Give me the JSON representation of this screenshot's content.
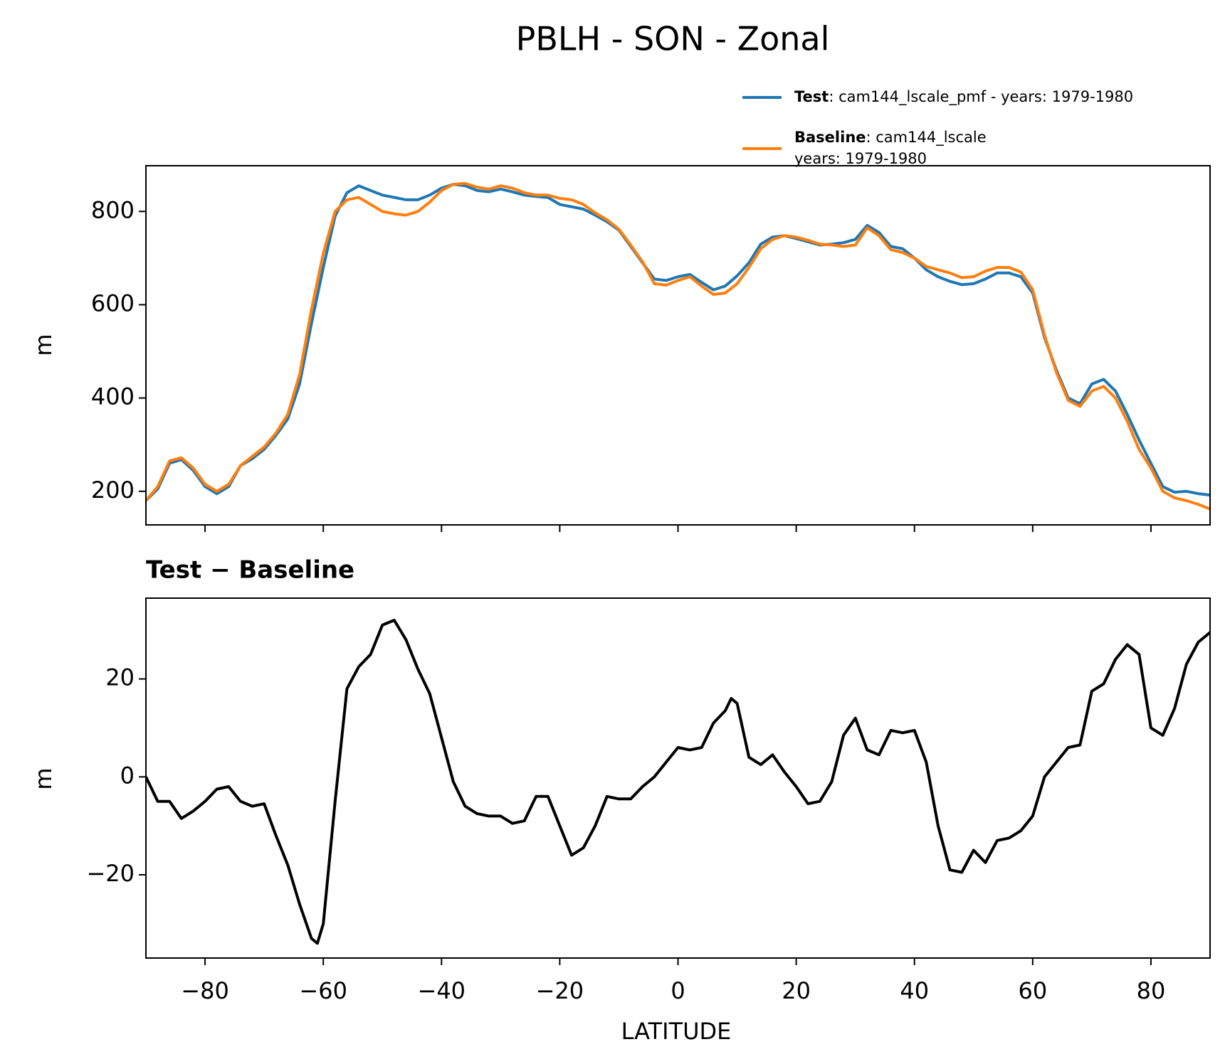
{
  "chart_data": [
    {
      "type": "line",
      "title": "PBLH - SON - Zonal",
      "ylabel": "m",
      "x": [
        -90,
        -88,
        -86,
        -84,
        -82,
        -80,
        -78,
        -76,
        -74,
        -72,
        -70,
        -68,
        -66,
        -64,
        -62,
        -60,
        -58,
        -56,
        -54,
        -52,
        -50,
        -48,
        -46,
        -44,
        -42,
        -40,
        -38,
        -36,
        -34,
        -32,
        -30,
        -28,
        -26,
        -24,
        -22,
        -20,
        -18,
        -16,
        -14,
        -12,
        -10,
        -8,
        -6,
        -4,
        -2,
        0,
        2,
        4,
        6,
        8,
        10,
        12,
        14,
        16,
        18,
        20,
        22,
        24,
        26,
        28,
        30,
        32,
        34,
        36,
        38,
        40,
        42,
        44,
        46,
        48,
        50,
        52,
        54,
        56,
        58,
        60,
        62,
        64,
        66,
        68,
        70,
        72,
        74,
        76,
        78,
        80,
        82,
        84,
        86,
        88,
        90
      ],
      "series": [
        {
          "name": "Test",
          "description": [
            ": cam144_lscale_pmf - years: 1979-1980"
          ],
          "color": "#1f77b4",
          "values": [
            180,
            205,
            260,
            268,
            245,
            210,
            195,
            210,
            255,
            270,
            290,
            320,
            355,
            430,
            560,
            680,
            790,
            840,
            855,
            845,
            835,
            830,
            825,
            825,
            835,
            850,
            858,
            855,
            845,
            842,
            848,
            842,
            835,
            832,
            830,
            815,
            810,
            805,
            792,
            778,
            760,
            725,
            690,
            655,
            652,
            660,
            665,
            648,
            632,
            640,
            662,
            690,
            730,
            745,
            748,
            742,
            735,
            728,
            730,
            733,
            740,
            770,
            755,
            725,
            720,
            700,
            675,
            660,
            650,
            643,
            645,
            655,
            668,
            668,
            660,
            625,
            530,
            460,
            400,
            388,
            430,
            440,
            415,
            365,
            310,
            260,
            210,
            198,
            200,
            195,
            192
          ]
        },
        {
          "name": "Baseline",
          "description": [
            ": cam144_lscale",
            "years: 1979-1980"
          ],
          "color": "#ff7f0e",
          "values": [
            180,
            210,
            265,
            272,
            250,
            215,
            200,
            215,
            255,
            275,
            295,
            325,
            365,
            450,
            590,
            710,
            800,
            825,
            830,
            815,
            800,
            795,
            792,
            800,
            820,
            845,
            858,
            860,
            852,
            848,
            855,
            850,
            840,
            835,
            835,
            828,
            825,
            815,
            797,
            782,
            762,
            728,
            692,
            645,
            642,
            652,
            660,
            640,
            622,
            625,
            645,
            680,
            720,
            740,
            748,
            745,
            738,
            730,
            728,
            725,
            728,
            765,
            748,
            718,
            712,
            700,
            682,
            675,
            668,
            658,
            660,
            672,
            680,
            680,
            670,
            632,
            535,
            455,
            395,
            382,
            415,
            425,
            400,
            350,
            290,
            250,
            200,
            186,
            180,
            172,
            162
          ]
        }
      ],
      "xlim": [
        -90,
        90
      ],
      "xticks": [
        -80,
        -60,
        -40,
        -20,
        0,
        20,
        40,
        60,
        80
      ],
      "ylim": [
        128,
        898
      ],
      "yticks": [
        200,
        400,
        600,
        800
      ]
    },
    {
      "type": "line",
      "title": "Test − Baseline",
      "ylabel": "m",
      "xlabel": "LATITUDE",
      "x": [
        -90,
        -88,
        -86,
        -84,
        -82,
        -80,
        -78,
        -76,
        -74,
        -72,
        -70,
        -68,
        -66,
        -64,
        -62,
        -61,
        -60,
        -58,
        -56,
        -54,
        -52,
        -50,
        -48,
        -46,
        -44,
        -42,
        -40,
        -38,
        -36,
        -34,
        -32,
        -30,
        -28,
        -26,
        -24,
        -22,
        -20,
        -18,
        -16,
        -14,
        -12,
        -10,
        -8,
        -6,
        -4,
        -2,
        0,
        2,
        4,
        6,
        8,
        9,
        10,
        12,
        14,
        16,
        18,
        20,
        22,
        24,
        26,
        28,
        30,
        32,
        34,
        36,
        38,
        40,
        42,
        44,
        46,
        48,
        50,
        52,
        54,
        56,
        58,
        60,
        62,
        64,
        66,
        68,
        70,
        72,
        74,
        76,
        78,
        80,
        82,
        84,
        86,
        88,
        90
      ],
      "series": [
        {
          "name": "Test − Baseline",
          "color": "#000000",
          "values": [
            0,
            -5,
            -5,
            -8.5,
            -7,
            -5,
            -2.5,
            -2,
            -5,
            -6,
            -5.5,
            -12,
            -18,
            -26,
            -33,
            -34,
            -30,
            -5,
            18,
            22.5,
            25,
            31,
            32,
            28,
            22,
            17,
            8,
            -1,
            -6,
            -7.5,
            -8,
            -8,
            -9.5,
            -9,
            -4,
            -4,
            -10,
            -16,
            -14.5,
            -10,
            -4,
            -4.5,
            -4.5,
            -2,
            0,
            3,
            6,
            5.5,
            6,
            11,
            13.5,
            16,
            15,
            4,
            2.5,
            4.5,
            1,
            -2,
            -5.5,
            -5,
            -1,
            8.5,
            12,
            5.5,
            4.5,
            9.5,
            9,
            9.5,
            3,
            -10,
            -19,
            -19.5,
            -15,
            -17.5,
            -13,
            -12.5,
            -11,
            -8,
            0,
            3,
            6,
            6.5,
            17.5,
            19,
            24,
            27,
            25,
            10,
            8.5,
            14,
            23,
            27.5,
            29.5
          ]
        }
      ],
      "xlim": [
        -90,
        90
      ],
      "xticks": [
        {
          "value": -80,
          "label": "−80"
        },
        {
          "value": -60,
          "label": "−60"
        },
        {
          "value": -40,
          "label": "−40"
        },
        {
          "value": -20,
          "label": "−20"
        },
        0,
        20,
        40,
        60,
        80
      ],
      "ylim": [
        -37,
        36.5
      ],
      "yticks": [
        {
          "value": -20,
          "label": "−20"
        },
        0,
        20
      ]
    }
  ]
}
